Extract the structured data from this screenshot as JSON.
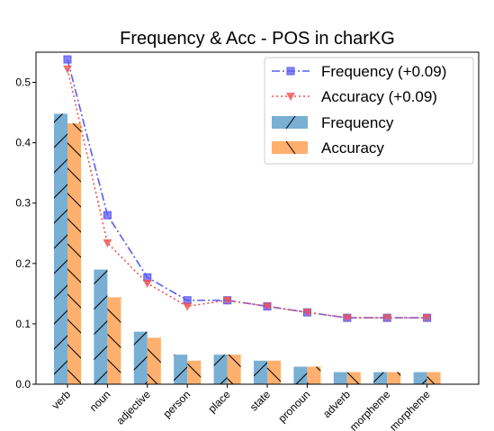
{
  "chart_data": {
    "type": "bar",
    "title": "Frequency & Acc - POS in charKG",
    "xlabel": "",
    "ylabel": "",
    "categories": [
      "verb",
      "noun",
      "adjective",
      "person",
      "place",
      "state",
      "pronoun",
      "adverb",
      "morpheme",
      "morpheme"
    ],
    "ylim": [
      0,
      0.55
    ],
    "yticks": [
      "0.0",
      "0.1",
      "0.2",
      "0.3",
      "0.4",
      "0.5"
    ],
    "ytick_values": [
      0.0,
      0.1,
      0.2,
      0.3,
      0.4,
      0.5
    ],
    "grid": false,
    "legend_position": "top-right",
    "series": [
      {
        "name": "Frequency",
        "kind": "bar",
        "hatch": "/",
        "color": "#7aafd4",
        "values": [
          0.448,
          0.19,
          0.087,
          0.049,
          0.049,
          0.039,
          0.029,
          0.02,
          0.02,
          0.02
        ]
      },
      {
        "name": "Accuracy",
        "kind": "bar",
        "hatch": "\\",
        "color": "#ffb06e",
        "values": [
          0.432,
          0.144,
          0.077,
          0.039,
          0.049,
          0.039,
          0.029,
          0.02,
          0.02,
          0.02
        ]
      },
      {
        "name": "Frequency (+0.09)",
        "kind": "line",
        "linestyle": "dashdot",
        "marker": "square",
        "color": "#5c5cf0",
        "values": [
          0.538,
          0.28,
          0.177,
          0.139,
          0.139,
          0.129,
          0.119,
          0.11,
          0.11,
          0.11
        ]
      },
      {
        "name": "Accuracy (+0.09)",
        "kind": "line",
        "linestyle": "dotted",
        "marker": "triangle-down",
        "color": "#f05050",
        "values": [
          0.522,
          0.234,
          0.167,
          0.129,
          0.139,
          0.129,
          0.119,
          0.11,
          0.11,
          0.11
        ]
      }
    ]
  }
}
